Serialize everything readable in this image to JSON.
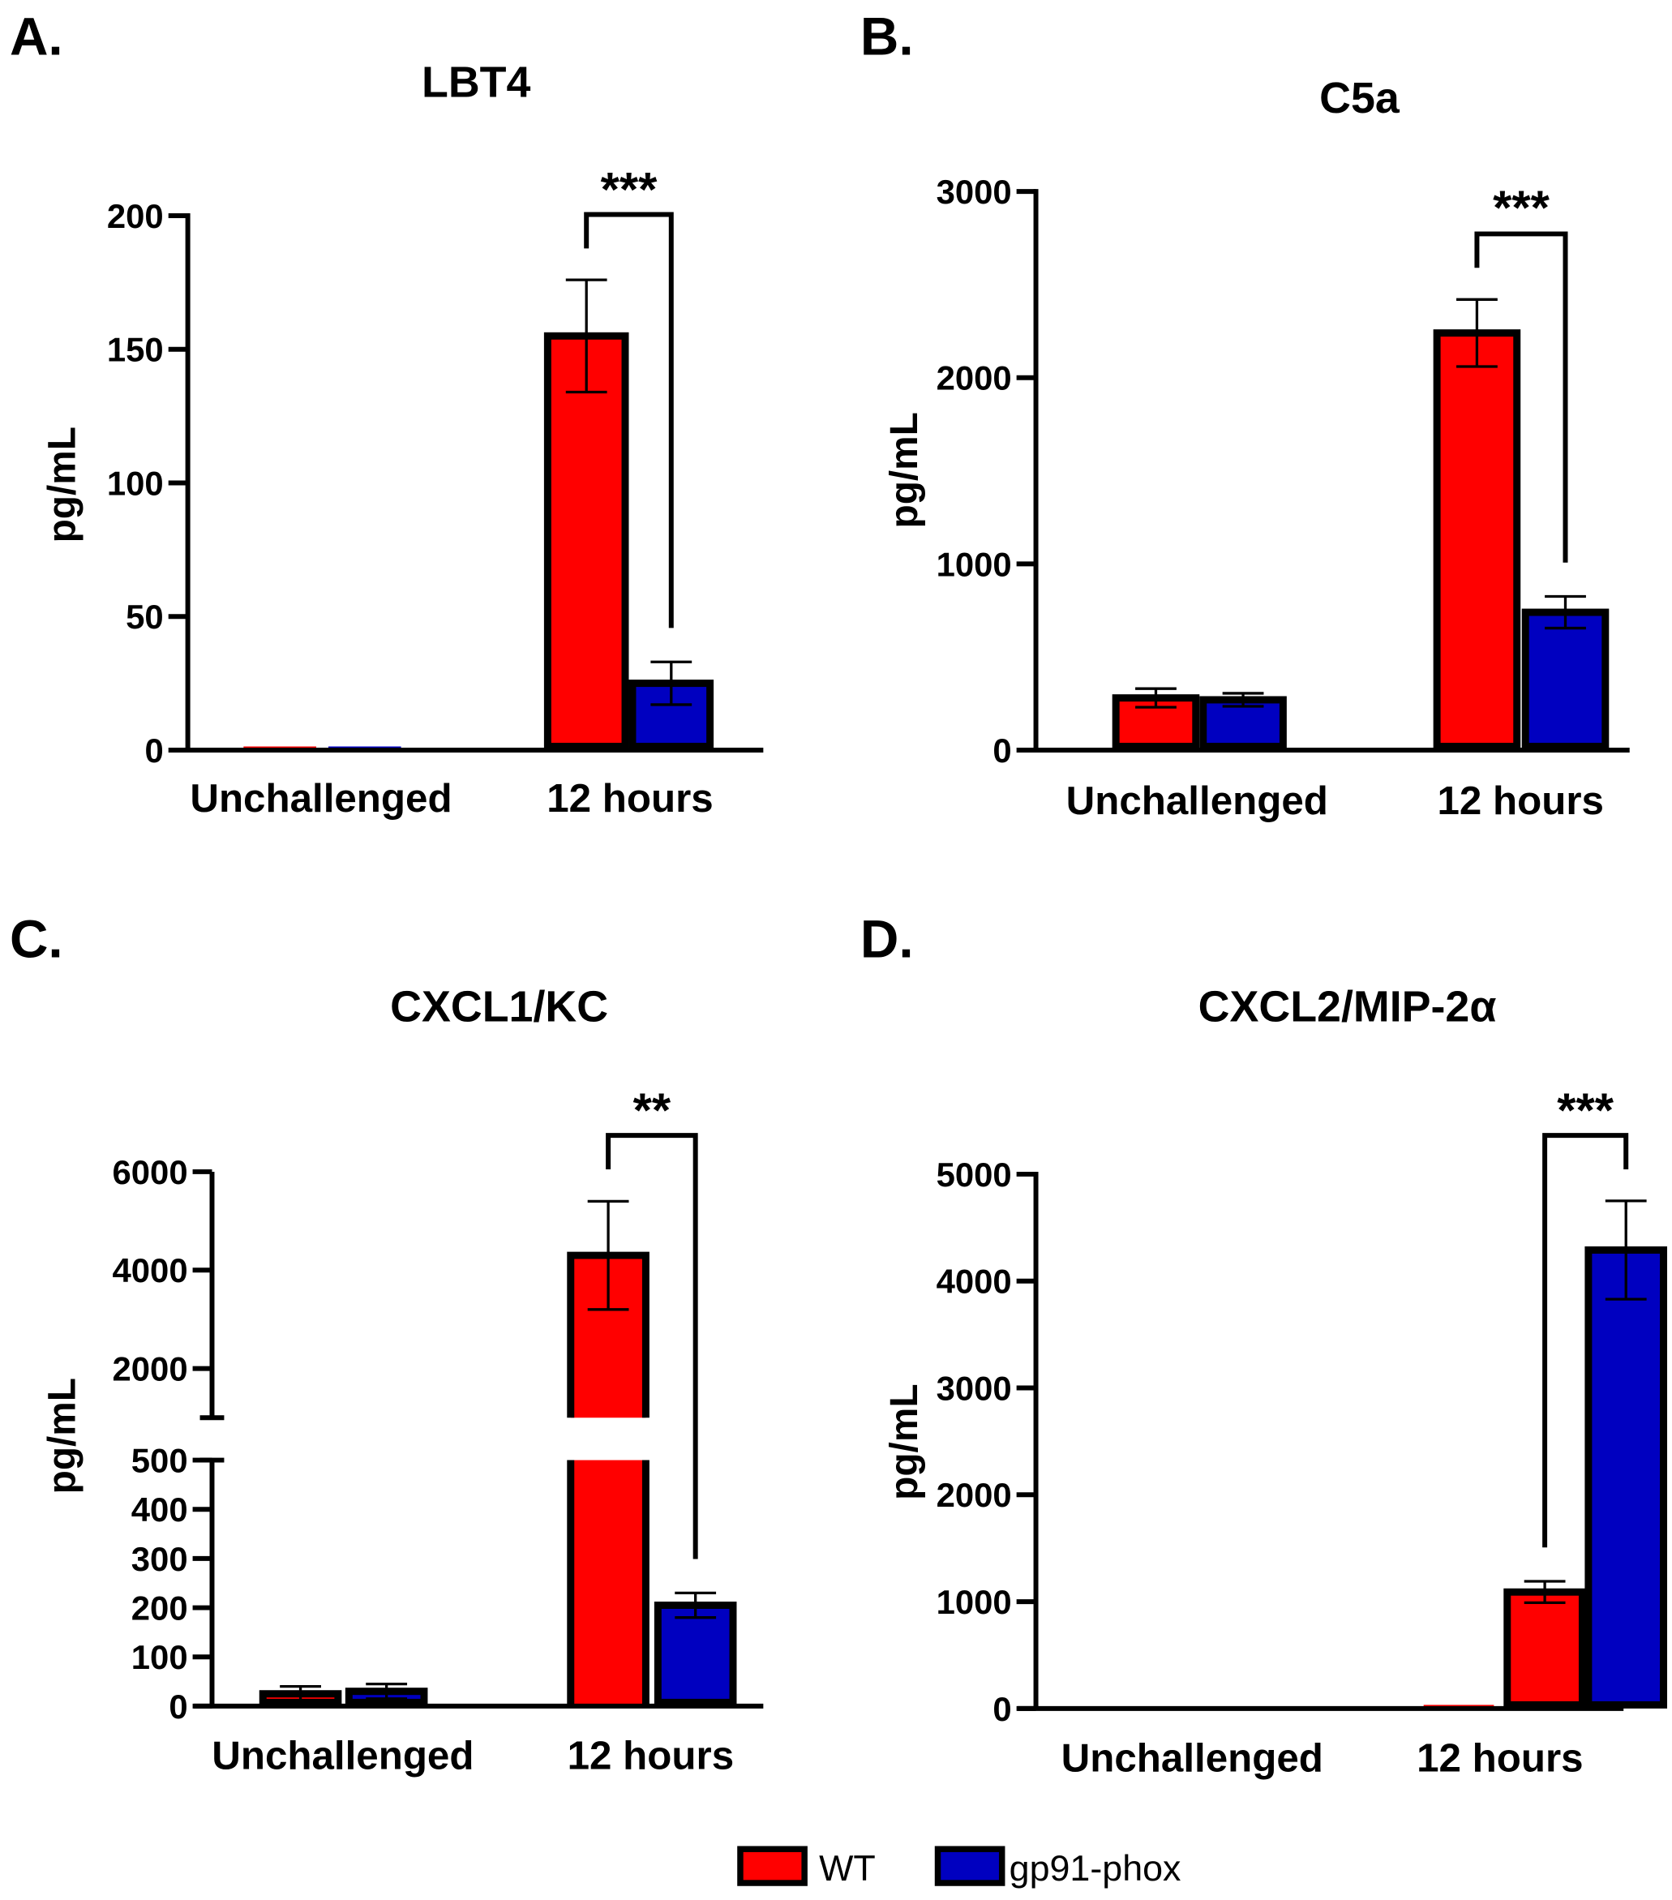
{
  "legend": [
    {
      "label": "WT",
      "color": "#ff0000"
    },
    {
      "label": "gp91-phox",
      "color": "#0000c0"
    }
  ],
  "chart_data": [
    {
      "type": "bar",
      "panel_label": "A.",
      "title": "LBT4",
      "ylabel": "pg/mL",
      "xlabel": "",
      "ylim": [
        0,
        200
      ],
      "yticks": [
        0,
        50,
        100,
        150,
        200
      ],
      "categories": [
        "Unchallenged",
        "12 hours"
      ],
      "series": [
        {
          "name": "WT",
          "values": [
            0,
            155
          ],
          "errors": [
            0,
            21
          ]
        },
        {
          "name": "gp91-phox",
          "values": [
            0,
            25
          ],
          "errors": [
            0,
            8
          ]
        }
      ],
      "significance": [
        {
          "category": "12 hours",
          "label": "***"
        }
      ]
    },
    {
      "type": "bar",
      "panel_label": "B.",
      "title": "C5a",
      "ylabel": "pg/mL",
      "xlabel": "",
      "ylim": [
        0,
        3000
      ],
      "yticks": [
        0,
        1000,
        2000,
        3000
      ],
      "categories": [
        "Unchallenged",
        "12 hours"
      ],
      "series": [
        {
          "name": "WT",
          "values": [
            280,
            2240
          ],
          "errors": [
            50,
            180
          ]
        },
        {
          "name": "gp91-phox",
          "values": [
            270,
            740
          ],
          "errors": [
            35,
            85
          ]
        }
      ],
      "significance": [
        {
          "category": "12 hours",
          "label": "***"
        }
      ]
    },
    {
      "type": "bar",
      "panel_label": "C.",
      "title": "CXCL1/KC",
      "ylabel": "pg/mL",
      "xlabel": "",
      "ylim": [
        0,
        6000
      ],
      "axis_break": [
        500,
        1000
      ],
      "yticks": [
        0,
        100,
        200,
        300,
        400,
        500,
        2000,
        4000,
        6000
      ],
      "categories": [
        "Unchallenged",
        "12 hours"
      ],
      "series": [
        {
          "name": "WT",
          "values": [
            25,
            4300
          ],
          "errors": [
            15,
            1100
          ]
        },
        {
          "name": "gp91-phox",
          "values": [
            30,
            205
          ],
          "errors": [
            15,
            25
          ]
        }
      ],
      "significance": [
        {
          "category": "12 hours",
          "label": "**"
        }
      ]
    },
    {
      "type": "bar",
      "panel_label": "D.",
      "title": "CXCL2/MIP-2α",
      "ylabel": "pg/mL",
      "xlabel": "",
      "ylim": [
        0,
        5000
      ],
      "yticks": [
        0,
        1000,
        2000,
        3000,
        4000,
        5000
      ],
      "categories": [
        "Unchallenged",
        "12 hours"
      ],
      "series": [
        {
          "name": "WT",
          "values": [
            0,
            1090
          ],
          "errors": [
            0,
            100
          ]
        },
        {
          "name": "gp91-phox",
          "values": [
            0,
            4290
          ],
          "errors": [
            0,
            460
          ]
        }
      ],
      "significance": [
        {
          "category": "12 hours",
          "label": "***"
        }
      ]
    }
  ]
}
